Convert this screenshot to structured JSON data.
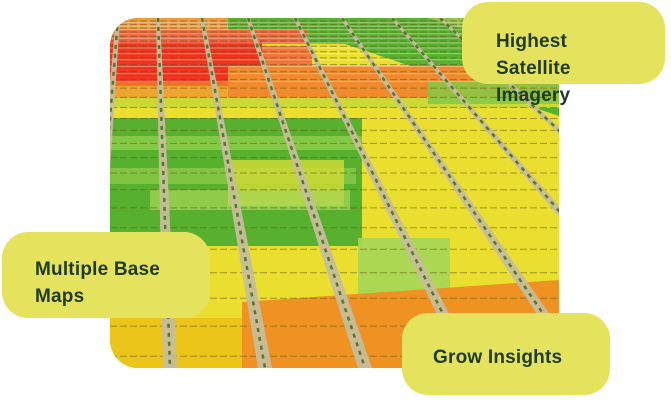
{
  "page": {
    "background_color": "#ffffff",
    "card_background_color": "#e5e25e",
    "card_text_color": "#1d3b25"
  },
  "cards": [
    {
      "name": "highest-satellite-imagery",
      "label": "Highest Satellite Imagery",
      "lines": [
        "Highest Satellite",
        "Imagery"
      ]
    },
    {
      "name": "multiple-base-maps",
      "label": "Multiple Base Maps",
      "lines": [
        "Multiple Base",
        "Maps"
      ]
    },
    {
      "name": "grow-insights",
      "label": "Grow Insights",
      "lines": [
        "Grow Insights"
      ]
    }
  ],
  "image": {
    "description": "aerial-satellite-view-of-striped-crop-fields",
    "palette": {
      "yellow": "#eadf2f",
      "yellowDeep": "#ecc51a",
      "orangeTop": "#f09a3c",
      "orange": "#f08a2e",
      "orangeDeep": "#ef9222",
      "red": "#ee3520",
      "redOrange": "#f2633a",
      "green": "#58b12e",
      "greenLight": "#84c845",
      "greenPale": "#a8d655",
      "yellowGreen": "#ccd934",
      "path": "#c7bd9b",
      "pathSpeckle": "#3f6c1e",
      "rowLine": "rgba(100,85,15,0.55)",
      "rowHighlight": "rgba(255,255,255,0.4)"
    }
  }
}
